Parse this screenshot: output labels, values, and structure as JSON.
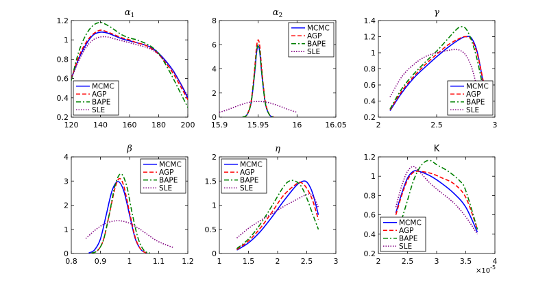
{
  "series_styles": [
    {
      "name": "MCMC",
      "color": "#0000ff",
      "dash": "solid"
    },
    {
      "name": "AGP",
      "color": "#ff0000",
      "dash": "dashed"
    },
    {
      "name": "BAPE",
      "color": "#008000",
      "dash": "dashdot"
    },
    {
      "name": "SLE",
      "color": "#800080",
      "dash": "dotted"
    }
  ],
  "chart_data": [
    {
      "type": "line",
      "title": "α",
      "title_sub": "1",
      "xlim": [
        120,
        200
      ],
      "ylim": [
        0.2,
        1.2
      ],
      "xticks": [
        120,
        140,
        160,
        180,
        200
      ],
      "yticks": [
        0.2,
        0.4,
        0.6,
        0.8,
        1,
        1.2
      ],
      "xtick_labels": [
        "120",
        "140",
        "160",
        "180",
        "200"
      ],
      "ytick_labels": [
        "0.2",
        "0.4",
        "0.6",
        "0.8",
        "1",
        "1.2"
      ],
      "legend_loc": "bottom-left",
      "legend_entries": [
        "MCMC",
        "AGP",
        "BAPE",
        "SLE"
      ],
      "series": [
        {
          "name": "MCMC",
          "x": [
            120,
            125,
            130,
            135,
            140,
            145,
            150,
            155,
            160,
            165,
            170,
            175,
            180,
            185,
            190,
            195,
            200
          ],
          "y": [
            0.6,
            0.8,
            0.95,
            1.05,
            1.08,
            1.07,
            1.04,
            1.01,
            0.99,
            0.97,
            0.95,
            0.92,
            0.86,
            0.78,
            0.68,
            0.55,
            0.4
          ]
        },
        {
          "name": "AGP",
          "x": [
            120,
            125,
            130,
            135,
            140,
            145,
            150,
            155,
            160,
            165,
            170,
            175,
            180,
            185,
            190,
            195,
            200
          ],
          "y": [
            0.6,
            0.82,
            0.97,
            1.06,
            1.1,
            1.08,
            1.05,
            1.02,
            1.0,
            0.97,
            0.95,
            0.91,
            0.85,
            0.76,
            0.65,
            0.52,
            0.38
          ]
        },
        {
          "name": "BAPE",
          "x": [
            120,
            125,
            130,
            135,
            140,
            145,
            150,
            155,
            160,
            165,
            170,
            175,
            180,
            185,
            190,
            195,
            200
          ],
          "y": [
            0.58,
            0.87,
            1.05,
            1.15,
            1.18,
            1.15,
            1.1,
            1.05,
            1.02,
            1.0,
            0.97,
            0.93,
            0.86,
            0.74,
            0.6,
            0.45,
            0.3
          ]
        },
        {
          "name": "SLE",
          "x": [
            120,
            125,
            130,
            135,
            140,
            145,
            150,
            155,
            160,
            165,
            170,
            175,
            180,
            185,
            190,
            195,
            200
          ],
          "y": [
            0.6,
            0.78,
            0.92,
            1.0,
            1.03,
            1.03,
            1.01,
            0.99,
            0.97,
            0.95,
            0.93,
            0.9,
            0.85,
            0.77,
            0.67,
            0.55,
            0.42
          ]
        }
      ]
    },
    {
      "type": "line",
      "title": "α",
      "title_sub": "2",
      "xlim": [
        15.9,
        16.05
      ],
      "ylim": [
        0,
        8
      ],
      "xticks": [
        15.9,
        15.95,
        16,
        16.05
      ],
      "yticks": [
        0,
        2,
        4,
        6,
        8
      ],
      "xtick_labels": [
        "15.9",
        "15.95",
        "16",
        "16.05"
      ],
      "ytick_labels": [
        "0",
        "2",
        "4",
        "6",
        "8"
      ],
      "legend_loc": "top-right",
      "legend_entries": [
        "MCMC",
        "AGP",
        "BAPE",
        "SLE"
      ],
      "series": [
        {
          "name": "MCMC",
          "x": [
            15.93,
            15.935,
            15.94,
            15.943,
            15.946,
            15.948,
            15.95,
            15.952,
            15.954,
            15.957,
            15.96,
            15.965,
            15.97
          ],
          "y": [
            0.02,
            0.15,
            0.9,
            2.2,
            4.0,
            5.4,
            5.9,
            5.4,
            4.0,
            2.2,
            0.9,
            0.15,
            0.02
          ]
        },
        {
          "name": "AGP",
          "x": [
            15.93,
            15.935,
            15.94,
            15.943,
            15.946,
            15.948,
            15.95,
            15.952,
            15.954,
            15.957,
            15.96,
            15.965,
            15.97
          ],
          "y": [
            0.02,
            0.15,
            1.0,
            2.4,
            4.4,
            5.9,
            6.4,
            5.9,
            4.4,
            2.4,
            1.0,
            0.15,
            0.02
          ]
        },
        {
          "name": "BAPE",
          "x": [
            15.93,
            15.935,
            15.94,
            15.943,
            15.946,
            15.948,
            15.95,
            15.952,
            15.954,
            15.957,
            15.96,
            15.965,
            15.97
          ],
          "y": [
            0.02,
            0.15,
            0.9,
            2.2,
            4.1,
            5.5,
            6.0,
            5.5,
            4.1,
            2.2,
            0.9,
            0.15,
            0.02
          ]
        },
        {
          "name": "SLE",
          "x": [
            15.9,
            15.91,
            15.92,
            15.93,
            15.94,
            15.95,
            15.96,
            15.97,
            15.98,
            15.99,
            16.0
          ],
          "y": [
            0.4,
            0.6,
            0.85,
            1.08,
            1.25,
            1.3,
            1.25,
            1.08,
            0.85,
            0.6,
            0.4
          ]
        }
      ]
    },
    {
      "type": "line",
      "title": "γ",
      "title_sub": "",
      "xlim": [
        2,
        3
      ],
      "ylim": [
        0.2,
        1.4
      ],
      "xticks": [
        2,
        2.5,
        3
      ],
      "yticks": [
        0.2,
        0.4,
        0.6,
        0.8,
        1,
        1.2,
        1.4
      ],
      "xtick_labels": [
        "2",
        "2.5",
        "3"
      ],
      "ytick_labels": [
        "0.2",
        "0.4",
        "0.6",
        "0.8",
        "1",
        "1.2",
        "1.4"
      ],
      "legend_loc": "bottom-right",
      "legend_entries": [
        "MCMC",
        "AGP",
        "BAPE",
        "SLE"
      ],
      "series": [
        {
          "name": "MCMC",
          "x": [
            2.1,
            2.2,
            2.3,
            2.4,
            2.5,
            2.6,
            2.7,
            2.75,
            2.8,
            2.85,
            2.9
          ],
          "y": [
            0.28,
            0.5,
            0.68,
            0.82,
            0.95,
            1.07,
            1.17,
            1.2,
            1.18,
            1.0,
            0.62
          ]
        },
        {
          "name": "AGP",
          "x": [
            2.1,
            2.2,
            2.3,
            2.4,
            2.5,
            2.6,
            2.7,
            2.75,
            2.8,
            2.85,
            2.9
          ],
          "y": [
            0.29,
            0.52,
            0.7,
            0.85,
            0.98,
            1.1,
            1.18,
            1.2,
            1.16,
            0.98,
            0.65
          ]
        },
        {
          "name": "BAPE",
          "x": [
            2.1,
            2.2,
            2.3,
            2.4,
            2.5,
            2.6,
            2.65,
            2.7,
            2.75,
            2.8,
            2.85,
            2.9
          ],
          "y": [
            0.3,
            0.55,
            0.73,
            0.88,
            1.02,
            1.18,
            1.26,
            1.32,
            1.3,
            1.15,
            0.9,
            0.55
          ]
        },
        {
          "name": "SLE",
          "x": [
            2.1,
            2.2,
            2.3,
            2.4,
            2.5,
            2.6,
            2.65,
            2.7,
            2.75,
            2.8,
            2.85
          ],
          "y": [
            0.45,
            0.7,
            0.85,
            0.95,
            1.0,
            1.03,
            1.04,
            1.03,
            0.97,
            0.82,
            0.55
          ]
        }
      ]
    },
    {
      "type": "line",
      "title": "β",
      "title_sub": "",
      "xlim": [
        0.8,
        1.2
      ],
      "ylim": [
        0,
        4
      ],
      "xticks": [
        0.8,
        0.9,
        1,
        1.1,
        1.2
      ],
      "yticks": [
        0,
        1,
        2,
        3,
        4
      ],
      "xtick_labels": [
        "0.8",
        "0.9",
        "1",
        "1.1",
        "1.2"
      ],
      "ytick_labels": [
        "0",
        "1",
        "2",
        "3",
        "4"
      ],
      "legend_loc": "top-right",
      "legend_entries": [
        "MCMC",
        "AGP",
        "BAPE",
        "SLE"
      ],
      "series": [
        {
          "name": "MCMC",
          "x": [
            0.86,
            0.88,
            0.9,
            0.92,
            0.94,
            0.96,
            0.98,
            1.0,
            1.02,
            1.04,
            1.06
          ],
          "y": [
            0.02,
            0.15,
            0.6,
            1.6,
            2.6,
            2.98,
            2.6,
            1.6,
            0.6,
            0.15,
            0.02
          ]
        },
        {
          "name": "AGP",
          "x": [
            0.87,
            0.89,
            0.91,
            0.93,
            0.95,
            0.965,
            0.98,
            1.0,
            1.02,
            1.04,
            1.06
          ],
          "y": [
            0.02,
            0.12,
            0.55,
            1.6,
            2.7,
            3.1,
            2.8,
            1.7,
            0.65,
            0.15,
            0.02
          ]
        },
        {
          "name": "BAPE",
          "x": [
            0.87,
            0.89,
            0.91,
            0.93,
            0.95,
            0.97,
            0.99,
            1.01,
            1.03,
            1.05,
            1.07
          ],
          "y": [
            0.02,
            0.12,
            0.55,
            1.6,
            2.8,
            3.3,
            2.8,
            1.6,
            0.6,
            0.12,
            0.02
          ]
        },
        {
          "name": "SLE",
          "x": [
            0.85,
            0.88,
            0.91,
            0.94,
            0.97,
            1.0,
            1.03,
            1.06,
            1.09,
            1.12,
            1.15
          ],
          "y": [
            0.62,
            0.95,
            1.2,
            1.33,
            1.35,
            1.25,
            1.05,
            0.8,
            0.55,
            0.38,
            0.25
          ]
        }
      ]
    },
    {
      "type": "line",
      "title": "η",
      "title_sub": "",
      "xlim": [
        1,
        3
      ],
      "ylim": [
        0,
        2
      ],
      "xticks": [
        1,
        1.5,
        2,
        2.5,
        3
      ],
      "yticks": [
        0,
        0.5,
        1,
        1.5,
        2
      ],
      "xtick_labels": [
        "1",
        "1.5",
        "2",
        "2.5",
        "3"
      ],
      "ytick_labels": [
        "0",
        "0.5",
        "1",
        "1.5",
        "2"
      ],
      "legend_loc": "top-left",
      "legend_entries": [
        "MCMC",
        "AGP",
        "BAPE",
        "SLE"
      ],
      "series": [
        {
          "name": "MCMC",
          "x": [
            1.3,
            1.5,
            1.7,
            1.9,
            2.1,
            2.3,
            2.4,
            2.5,
            2.6,
            2.7
          ],
          "y": [
            0.07,
            0.22,
            0.45,
            0.75,
            1.08,
            1.38,
            1.48,
            1.48,
            1.25,
            0.8
          ]
        },
        {
          "name": "AGP",
          "x": [
            1.3,
            1.5,
            1.7,
            1.9,
            2.1,
            2.3,
            2.4,
            2.5,
            2.6,
            2.7
          ],
          "y": [
            0.08,
            0.26,
            0.52,
            0.85,
            1.2,
            1.42,
            1.47,
            1.35,
            1.1,
            0.7
          ]
        },
        {
          "name": "BAPE",
          "x": [
            1.3,
            1.5,
            1.7,
            1.9,
            2.1,
            2.2,
            2.3,
            2.4,
            2.5,
            2.6,
            2.7
          ],
          "y": [
            0.1,
            0.3,
            0.6,
            0.98,
            1.38,
            1.5,
            1.5,
            1.4,
            1.15,
            0.82,
            0.5
          ]
        },
        {
          "name": "SLE",
          "x": [
            1.3,
            1.5,
            1.7,
            1.9,
            2.1,
            2.3,
            2.5,
            2.6,
            2.7
          ],
          "y": [
            0.32,
            0.52,
            0.68,
            0.82,
            0.97,
            1.1,
            1.22,
            1.2,
            0.95
          ]
        }
      ]
    },
    {
      "type": "line",
      "title": "K",
      "title_sub": "",
      "x_exponent": "×10",
      "x_exponent_power": "-5",
      "xlim": [
        2,
        4
      ],
      "ylim": [
        0.2,
        1.2
      ],
      "xticks": [
        2,
        2.5,
        3,
        3.5,
        4
      ],
      "yticks": [
        0.2,
        0.4,
        0.6,
        0.8,
        1,
        1.2
      ],
      "xtick_labels": [
        "2",
        "2.5",
        "3",
        "3.5",
        "4"
      ],
      "ytick_labels": [
        "0.2",
        "0.4",
        "0.6",
        "0.8",
        "1",
        "1.2"
      ],
      "legend_loc": "bottom-left",
      "legend_entries": [
        "MCMC",
        "AGP",
        "BAPE",
        "SLE"
      ],
      "series": [
        {
          "name": "MCMC",
          "x": [
            2.3,
            2.4,
            2.5,
            2.6,
            2.7,
            2.9,
            3.1,
            3.3,
            3.5,
            3.7
          ],
          "y": [
            0.62,
            0.82,
            0.98,
            1.05,
            1.05,
            1.0,
            0.92,
            0.82,
            0.68,
            0.42
          ]
        },
        {
          "name": "AGP",
          "x": [
            2.3,
            2.4,
            2.5,
            2.6,
            2.7,
            2.9,
            3.1,
            3.3,
            3.5,
            3.7
          ],
          "y": [
            0.6,
            0.8,
            0.96,
            1.04,
            1.05,
            1.03,
            0.98,
            0.92,
            0.78,
            0.45
          ]
        },
        {
          "name": "BAPE",
          "x": [
            2.4,
            2.5,
            2.6,
            2.7,
            2.8,
            2.9,
            3.0,
            3.2,
            3.4,
            3.5,
            3.7
          ],
          "y": [
            0.55,
            0.75,
            0.95,
            1.08,
            1.15,
            1.16,
            1.12,
            1.05,
            0.95,
            0.85,
            0.45
          ]
        },
        {
          "name": "SLE",
          "x": [
            2.3,
            2.4,
            2.5,
            2.6,
            2.7,
            2.9,
            3.1,
            3.3,
            3.5,
            3.7
          ],
          "y": [
            0.68,
            0.9,
            1.05,
            1.1,
            1.05,
            0.92,
            0.82,
            0.72,
            0.58,
            0.4
          ]
        }
      ]
    }
  ]
}
